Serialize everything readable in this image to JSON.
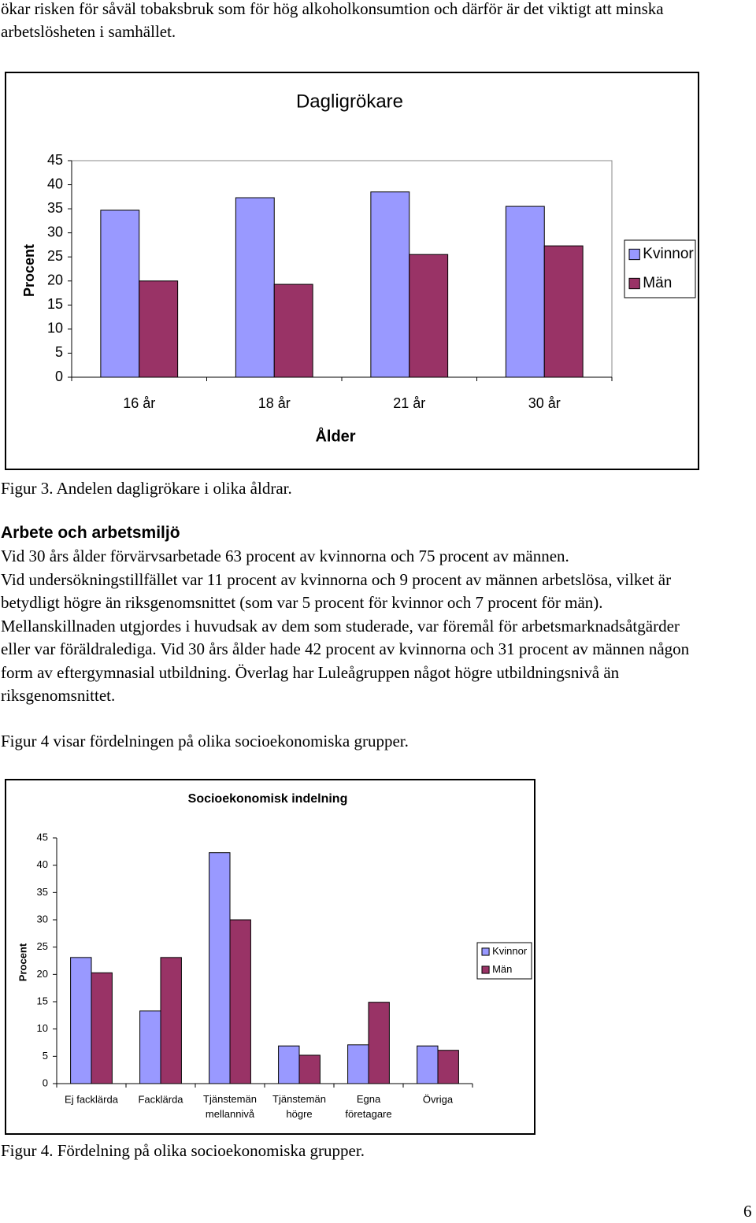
{
  "intro_text": "ökar risken för såväl tobaksbruk som för hög alkoholkonsumtion och därför är det viktigt att minska arbetslösheten i samhället.",
  "chart_data": [
    {
      "type": "bar",
      "title": "Dagligrökare",
      "x_label": "Ålder",
      "y_label": "Procent",
      "categories": [
        "16 år",
        "18 år",
        "21 år",
        "30 år"
      ],
      "series": [
        {
          "name": "Kvinnor",
          "color": "#9999ff",
          "values": [
            34.7,
            37.3,
            38.5,
            35.5
          ]
        },
        {
          "name": "Män",
          "color": "#993366",
          "values": [
            20.0,
            19.3,
            25.5,
            27.3
          ]
        }
      ],
      "ylim": [
        0,
        45
      ],
      "yticks": [
        0,
        5,
        10,
        15,
        20,
        25,
        30,
        35,
        40,
        45
      ],
      "grid": false,
      "legend": "right"
    },
    {
      "type": "bar",
      "title": "Socioekonomisk indelning",
      "y_label": "Procent",
      "categories": [
        "Ej facklärda",
        "Facklärda",
        "Tjänstemän\nmellannivå",
        "Tjänstemän\nhögre",
        "Egna\nföretagare",
        "Övriga"
      ],
      "series": [
        {
          "name": "Kvinnor",
          "color": "#9999ff",
          "values": [
            23.1,
            13.3,
            42.3,
            6.9,
            7.1,
            6.9
          ]
        },
        {
          "name": "Män",
          "color": "#993366",
          "values": [
            20.3,
            23.1,
            30.0,
            5.2,
            14.9,
            6.1
          ]
        }
      ],
      "ylim": [
        0,
        45
      ],
      "yticks": [
        0,
        5,
        10,
        15,
        20,
        25,
        30,
        35,
        40,
        45
      ],
      "grid": false,
      "legend": "right"
    }
  ],
  "figure_captions": [
    "Figur 3. Andelen dagligrökare i olika åldrar.",
    "Figur 4. Fördelning på olika socioekonomiska grupper."
  ],
  "section_heading": "Arbete och arbetsmiljö",
  "paragraphs": [
    "Vid 30 års ålder förvärvsarbetade 63 procent av kvinnorna och 75 procent av männen.",
    "Vid undersökningstillfället var 11 procent av kvinnorna och 9 procent av männen arbetslösa, vilket är betydligt högre än riksgenomsnittet (som var 5 procent för kvinnor och 7 procent för män). Mellanskillnaden utgjordes i huvudsak av dem som studerade, var föremål för arbetsmarknadsåtgärder eller var föräldralediga. Vid 30 års ålder hade 42 procent av kvinnorna och 31 procent av männen någon form av eftergymnasial utbildning. Överlag har Luleågruppen något högre utbildningsnivå än riksgenomsnittet.",
    "Figur 4 visar fördelningen på olika socioekonomiska grupper."
  ],
  "page_number": "6"
}
